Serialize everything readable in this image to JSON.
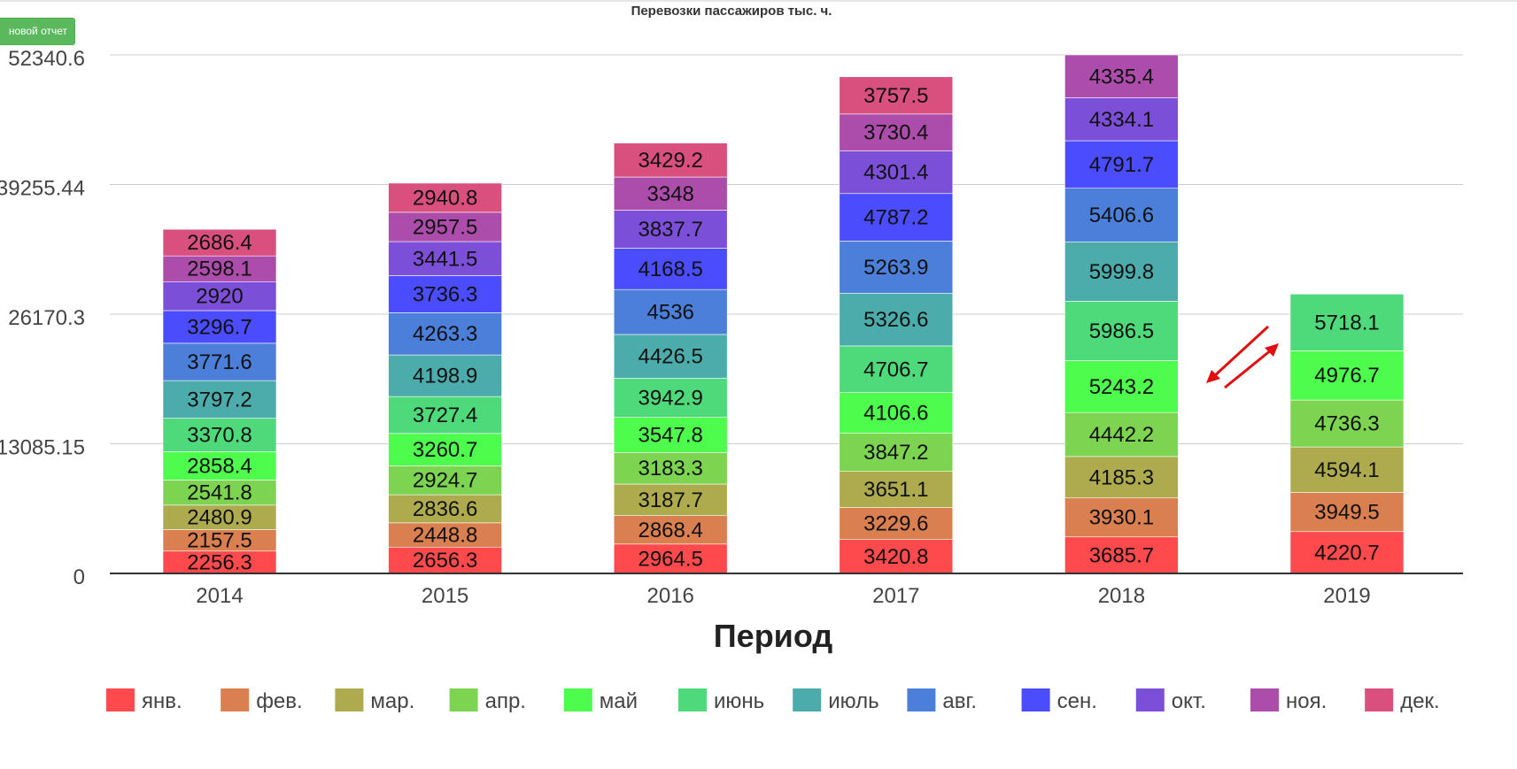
{
  "toolbar": {
    "report_button_label": "новой отчет"
  },
  "colors": {
    "янв.": "#fe4a4c",
    "фев.": "#d97f50",
    "мар.": "#aeab4f",
    "апр.": "#7dd451",
    "май": "#4dfc4d",
    "июнь": "#4ed97b",
    "июль": "#4cacab",
    "авг.": "#4b7fd9",
    "сен.": "#4a4cfe",
    "окт.": "#7c4fd9",
    "ноя.": "#ac4dab",
    "дек.": "#d94f7e"
  },
  "chart_data": {
    "type": "bar",
    "stacked": true,
    "title": "Перевозки пассажиров тыс. ч.",
    "xlabel": "Период",
    "ylabel": "",
    "categories": [
      "2014",
      "2015",
      "2016",
      "2017",
      "2018",
      "2019"
    ],
    "ylim": [
      0,
      52340.6
    ],
    "yticks": [
      0,
      13085.15,
      26170.3,
      39255.44,
      52340.6
    ],
    "ytick_labels": [
      "0",
      "13085.15",
      "26170.3",
      "39255.44",
      "52340.6"
    ],
    "grid": true,
    "legend_position": "bottom",
    "series": [
      {
        "name": "янв.",
        "values": [
          2256.3,
          2656.3,
          2964.5,
          3420.8,
          3685.7,
          4220.7
        ]
      },
      {
        "name": "фев.",
        "values": [
          2157.5,
          2448.8,
          2868.4,
          3229.6,
          3930.1,
          3949.5
        ]
      },
      {
        "name": "мар.",
        "values": [
          2480.9,
          2836.6,
          3187.7,
          3651.1,
          4185.3,
          4594.1
        ]
      },
      {
        "name": "апр.",
        "values": [
          2541.8,
          2924.7,
          3183.3,
          3847.2,
          4442.2,
          4736.3
        ]
      },
      {
        "name": "май",
        "values": [
          2858.4,
          3260.7,
          3547.8,
          4106.6,
          5243.2,
          4976.7
        ]
      },
      {
        "name": "июнь",
        "values": [
          3370.8,
          3727.4,
          3942.9,
          4706.7,
          5986.5,
          5718.1
        ]
      },
      {
        "name": "июль",
        "values": [
          3797.2,
          4198.9,
          4426.5,
          5326.6,
          5999.8,
          null
        ]
      },
      {
        "name": "авг.",
        "values": [
          3771.6,
          4263.3,
          4536,
          5263.9,
          5406.6,
          null
        ]
      },
      {
        "name": "сен.",
        "values": [
          3296.7,
          3736.3,
          4168.5,
          4787.2,
          4791.7,
          null
        ]
      },
      {
        "name": "окт.",
        "values": [
          2920,
          3441.5,
          3837.7,
          4301.4,
          4334.1,
          null
        ]
      },
      {
        "name": "ноя.",
        "values": [
          2598.1,
          2957.5,
          3348,
          3730.4,
          4335.4,
          null
        ]
      },
      {
        "name": "дек.",
        "values": [
          2686.4,
          2940.8,
          3429.2,
          3757.5,
          null,
          null
        ]
      }
    ]
  }
}
